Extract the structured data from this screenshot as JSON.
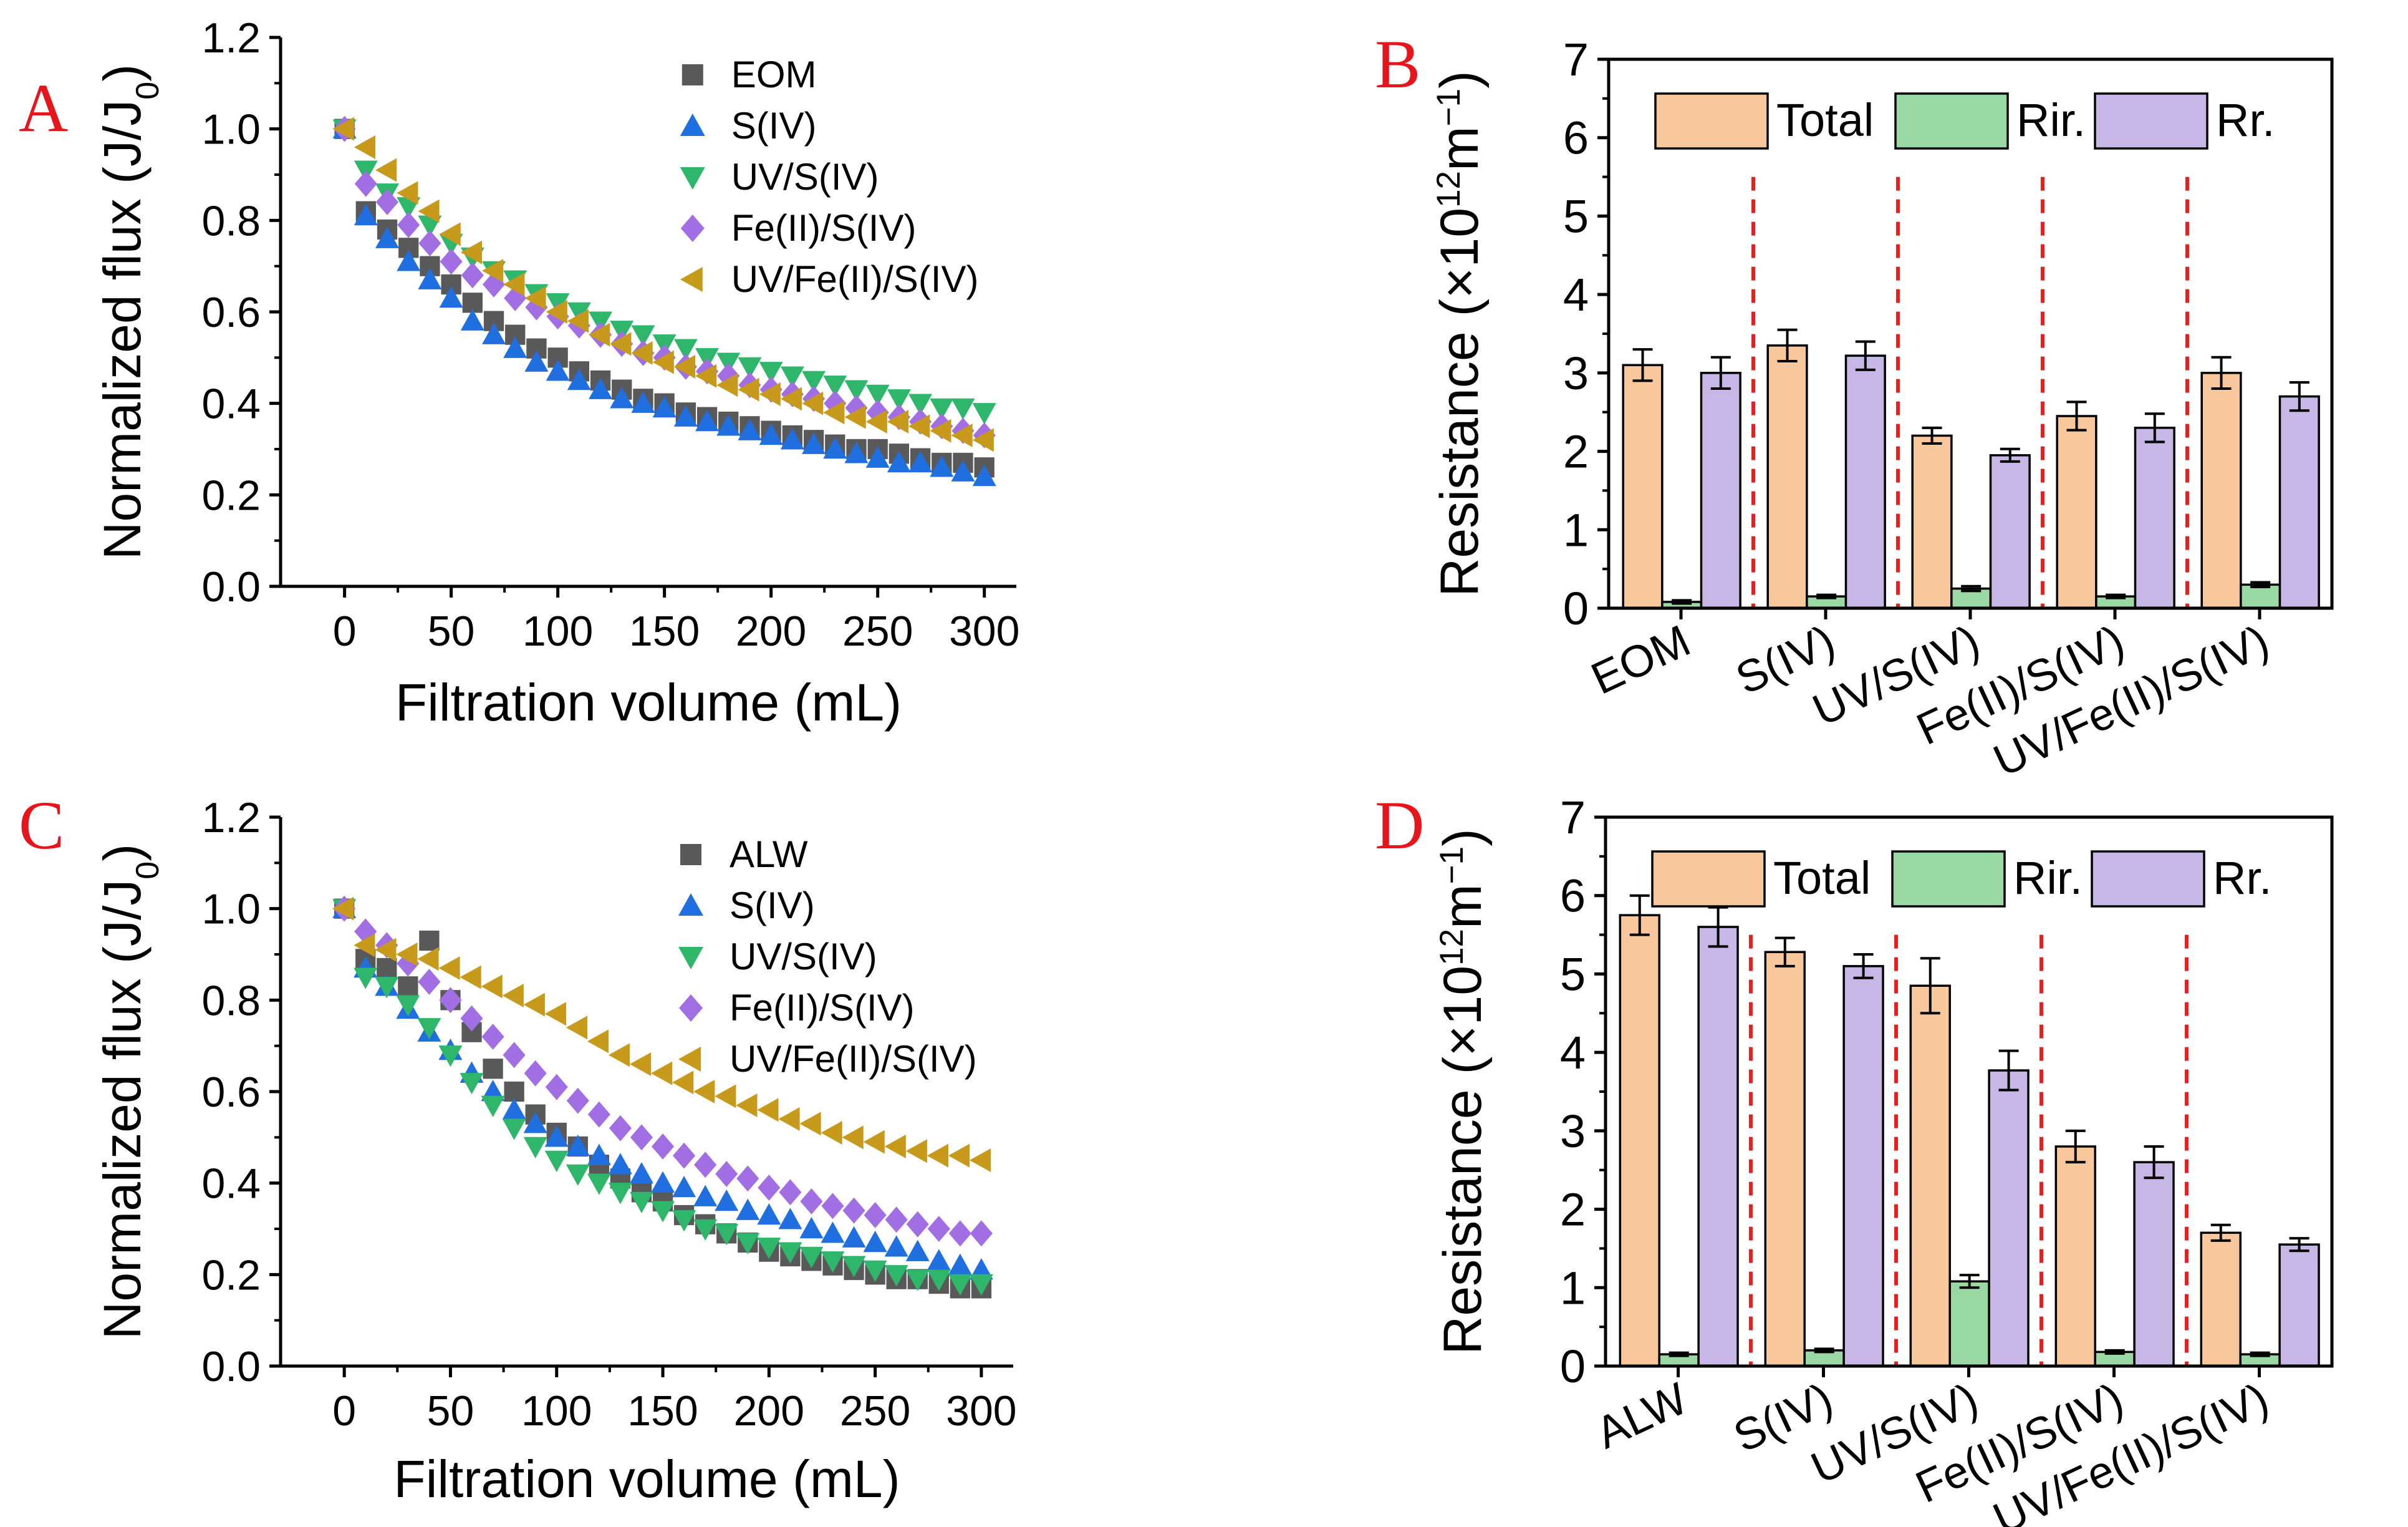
{
  "chart_data": [
    {
      "panel": "A",
      "type": "scatter",
      "xlabel": "Filtration volume (mL)",
      "ylabel": "Normalized flux (J/J",
      "ylabel_sub": "0",
      "ylabel_end": ")",
      "xlim": [
        -30,
        315
      ],
      "ylim": [
        0,
        1.2
      ],
      "xticks": [
        "0",
        "50",
        "100",
        "150",
        "200",
        "250",
        "300"
      ],
      "yticks": [
        "0.0",
        "0.2",
        "0.4",
        "0.6",
        "0.8",
        "1.0",
        "1.2"
      ],
      "legend_position": "top-right",
      "series": [
        {
          "name": "EOM",
          "marker": "square",
          "color": "#595959",
          "x": [
            0,
            10,
            20,
            30,
            40,
            50,
            60,
            70,
            80,
            90,
            100,
            110,
            120,
            130,
            140,
            150,
            160,
            170,
            180,
            190,
            200,
            210,
            220,
            230,
            240,
            250,
            260,
            270,
            280,
            290,
            300
          ],
          "values": [
            1.0,
            0.82,
            0.78,
            0.74,
            0.7,
            0.66,
            0.62,
            0.58,
            0.55,
            0.52,
            0.5,
            0.47,
            0.45,
            0.43,
            0.41,
            0.4,
            0.38,
            0.37,
            0.36,
            0.35,
            0.34,
            0.33,
            0.32,
            0.31,
            0.3,
            0.3,
            0.29,
            0.28,
            0.27,
            0.27,
            0.26
          ]
        },
        {
          "name": "S(IV)",
          "marker": "triangle-up",
          "color": "#1f6fe0",
          "x": [
            0,
            10,
            20,
            30,
            40,
            50,
            60,
            70,
            80,
            90,
            100,
            110,
            120,
            130,
            140,
            150,
            160,
            170,
            180,
            190,
            200,
            210,
            220,
            230,
            240,
            250,
            260,
            270,
            280,
            290,
            300
          ],
          "values": [
            1.0,
            0.81,
            0.76,
            0.71,
            0.67,
            0.63,
            0.58,
            0.55,
            0.52,
            0.49,
            0.47,
            0.45,
            0.43,
            0.41,
            0.4,
            0.39,
            0.37,
            0.36,
            0.35,
            0.34,
            0.33,
            0.32,
            0.31,
            0.3,
            0.29,
            0.28,
            0.27,
            0.27,
            0.26,
            0.25,
            0.24
          ]
        },
        {
          "name": "UV/S(IV)",
          "marker": "triangle-down",
          "color": "#2eb66b",
          "x": [
            0,
            10,
            20,
            30,
            40,
            50,
            60,
            70,
            80,
            90,
            100,
            110,
            120,
            130,
            140,
            150,
            160,
            170,
            180,
            190,
            200,
            210,
            220,
            230,
            240,
            250,
            260,
            270,
            280,
            290,
            300
          ],
          "values": [
            1.0,
            0.91,
            0.86,
            0.83,
            0.79,
            0.75,
            0.72,
            0.69,
            0.67,
            0.64,
            0.62,
            0.6,
            0.58,
            0.56,
            0.55,
            0.53,
            0.52,
            0.5,
            0.49,
            0.48,
            0.47,
            0.46,
            0.45,
            0.44,
            0.43,
            0.42,
            0.41,
            0.4,
            0.39,
            0.39,
            0.38
          ]
        },
        {
          "name": "Fe(II)/S(IV)",
          "marker": "diamond",
          "color": "#a26ee3",
          "x": [
            0,
            10,
            20,
            30,
            40,
            50,
            60,
            70,
            80,
            90,
            100,
            110,
            120,
            130,
            140,
            150,
            160,
            170,
            180,
            190,
            200,
            210,
            220,
            230,
            240,
            250,
            260,
            270,
            280,
            290,
            300
          ],
          "values": [
            1.0,
            0.88,
            0.84,
            0.79,
            0.75,
            0.71,
            0.68,
            0.66,
            0.63,
            0.61,
            0.59,
            0.57,
            0.55,
            0.53,
            0.51,
            0.5,
            0.48,
            0.47,
            0.46,
            0.44,
            0.43,
            0.42,
            0.41,
            0.4,
            0.39,
            0.38,
            0.37,
            0.36,
            0.35,
            0.34,
            0.33
          ]
        },
        {
          "name": "UV/Fe(II)/S(IV)",
          "marker": "triangle-left",
          "color": "#c89a1c",
          "x": [
            0,
            10,
            20,
            30,
            40,
            50,
            60,
            70,
            80,
            90,
            100,
            110,
            120,
            130,
            140,
            150,
            160,
            170,
            180,
            190,
            200,
            210,
            220,
            230,
            240,
            250,
            260,
            270,
            280,
            290,
            300
          ],
          "values": [
            1.0,
            0.96,
            0.91,
            0.86,
            0.82,
            0.77,
            0.73,
            0.69,
            0.66,
            0.63,
            0.6,
            0.58,
            0.55,
            0.53,
            0.51,
            0.49,
            0.48,
            0.46,
            0.44,
            0.43,
            0.42,
            0.41,
            0.4,
            0.38,
            0.37,
            0.36,
            0.36,
            0.35,
            0.34,
            0.33,
            0.32
          ]
        }
      ]
    },
    {
      "panel": "B",
      "type": "bar",
      "ylabel": "Resistance (×10",
      "ylabel_sup": "12",
      "ylabel_end": "m",
      "ylabel_sup2": "−1",
      "ylabel_close": ")",
      "ylim": [
        0,
        7
      ],
      "yticks": [
        "0",
        "1",
        "2",
        "3",
        "4",
        "5",
        "6",
        "7"
      ],
      "categories": [
        "EOM",
        "S(IV)",
        "UV/S(IV)",
        "Fe(II)/S(IV)",
        "UV/Fe(II)/S(IV)"
      ],
      "legend_position": "top",
      "series": [
        {
          "name": "Total",
          "color": "#f9c79c",
          "values": [
            3.1,
            3.35,
            2.2,
            2.45,
            3.0
          ],
          "errors": [
            0.2,
            0.2,
            0.1,
            0.18,
            0.2
          ]
        },
        {
          "name": "Rir.",
          "color": "#9ad8a4",
          "values": [
            0.08,
            0.15,
            0.25,
            0.15,
            0.3
          ],
          "errors": [
            0.02,
            0.02,
            0.03,
            0.02,
            0.03
          ]
        },
        {
          "name": "Rr.",
          "color": "#c7b7e6",
          "values": [
            3.0,
            3.22,
            1.95,
            2.3,
            2.7
          ],
          "errors": [
            0.2,
            0.18,
            0.08,
            0.18,
            0.18
          ]
        }
      ]
    },
    {
      "panel": "C",
      "type": "scatter",
      "xlabel": "Filtration volume (mL)",
      "ylabel": "Normalized flux (J/J",
      "ylabel_sub": "0",
      "ylabel_end": ")",
      "xlim": [
        -30,
        315
      ],
      "ylim": [
        0,
        1.2
      ],
      "xticks": [
        "0",
        "50",
        "100",
        "150",
        "200",
        "250",
        "300"
      ],
      "yticks": [
        "0.0",
        "0.2",
        "0.4",
        "0.6",
        "0.8",
        "1.0",
        "1.2"
      ],
      "legend_position": "top-right",
      "series": [
        {
          "name": "ALW",
          "marker": "square",
          "color": "#595959",
          "x": [
            0,
            10,
            20,
            30,
            40,
            50,
            60,
            70,
            80,
            90,
            100,
            110,
            120,
            130,
            140,
            150,
            160,
            170,
            180,
            190,
            200,
            210,
            220,
            230,
            240,
            250,
            260,
            270,
            280,
            290,
            300
          ],
          "values": [
            1.0,
            0.89,
            0.87,
            0.83,
            0.93,
            0.8,
            0.73,
            0.65,
            0.6,
            0.55,
            0.51,
            0.48,
            0.44,
            0.41,
            0.38,
            0.36,
            0.33,
            0.31,
            0.29,
            0.27,
            0.25,
            0.24,
            0.23,
            0.22,
            0.21,
            0.2,
            0.19,
            0.19,
            0.18,
            0.17,
            0.17
          ]
        },
        {
          "name": "S(IV)",
          "marker": "triangle-up",
          "color": "#1f6fe0",
          "x": [
            0,
            10,
            20,
            30,
            40,
            50,
            60,
            70,
            80,
            90,
            100,
            110,
            120,
            130,
            140,
            150,
            160,
            170,
            180,
            190,
            200,
            210,
            220,
            230,
            240,
            250,
            260,
            270,
            280,
            290,
            300
          ],
          "values": [
            1.0,
            0.87,
            0.83,
            0.78,
            0.73,
            0.69,
            0.64,
            0.6,
            0.56,
            0.53,
            0.5,
            0.48,
            0.46,
            0.44,
            0.42,
            0.4,
            0.39,
            0.37,
            0.36,
            0.34,
            0.33,
            0.32,
            0.3,
            0.29,
            0.28,
            0.27,
            0.26,
            0.25,
            0.23,
            0.22,
            0.21
          ]
        },
        {
          "name": "UV/S(IV)",
          "marker": "triangle-down",
          "color": "#2eb66b",
          "x": [
            0,
            10,
            20,
            30,
            40,
            50,
            60,
            70,
            80,
            90,
            100,
            110,
            120,
            130,
            140,
            150,
            160,
            170,
            180,
            190,
            200,
            210,
            220,
            230,
            240,
            250,
            260,
            270,
            280,
            290,
            300
          ],
          "values": [
            1.0,
            0.85,
            0.83,
            0.79,
            0.74,
            0.68,
            0.62,
            0.57,
            0.52,
            0.48,
            0.45,
            0.42,
            0.4,
            0.38,
            0.36,
            0.34,
            0.32,
            0.3,
            0.29,
            0.27,
            0.26,
            0.25,
            0.24,
            0.23,
            0.22,
            0.21,
            0.2,
            0.19,
            0.19,
            0.18,
            0.18
          ]
        },
        {
          "name": "Fe(II)/S(IV)",
          "marker": "diamond",
          "color": "#a26ee3",
          "x": [
            0,
            10,
            20,
            30,
            40,
            50,
            60,
            70,
            80,
            90,
            100,
            110,
            120,
            130,
            140,
            150,
            160,
            170,
            180,
            190,
            200,
            210,
            220,
            230,
            240,
            250,
            260,
            270,
            280,
            290,
            300
          ],
          "values": [
            1.0,
            0.95,
            0.92,
            0.88,
            0.84,
            0.8,
            0.76,
            0.72,
            0.68,
            0.64,
            0.61,
            0.58,
            0.55,
            0.52,
            0.5,
            0.48,
            0.46,
            0.44,
            0.42,
            0.41,
            0.39,
            0.38,
            0.36,
            0.35,
            0.34,
            0.33,
            0.32,
            0.31,
            0.3,
            0.29,
            0.29
          ]
        },
        {
          "name": "UV/Fe(II)/S(IV)",
          "marker": "triangle-left",
          "color": "#c89a1c",
          "x": [
            0,
            10,
            20,
            30,
            40,
            50,
            60,
            70,
            80,
            90,
            100,
            110,
            120,
            130,
            140,
            150,
            160,
            170,
            180,
            190,
            200,
            210,
            220,
            230,
            240,
            250,
            260,
            270,
            280,
            290,
            300
          ],
          "values": [
            1.0,
            0.92,
            0.91,
            0.9,
            0.89,
            0.87,
            0.85,
            0.83,
            0.81,
            0.79,
            0.77,
            0.74,
            0.71,
            0.68,
            0.66,
            0.64,
            0.62,
            0.6,
            0.59,
            0.57,
            0.56,
            0.54,
            0.53,
            0.51,
            0.5,
            0.49,
            0.48,
            0.47,
            0.46,
            0.46,
            0.45
          ]
        }
      ]
    },
    {
      "panel": "D",
      "type": "bar",
      "ylabel": "Resistance (×10",
      "ylabel_sup": "12",
      "ylabel_end": "m",
      "ylabel_sup2": "−1",
      "ylabel_close": ")",
      "ylim": [
        0,
        7
      ],
      "yticks": [
        "0",
        "1",
        "2",
        "3",
        "4",
        "5",
        "6",
        "7"
      ],
      "categories": [
        "ALW",
        "S(IV)",
        "UV/S(IV)",
        "Fe(II)/S(IV)",
        "UV/Fe(II)/S(IV)"
      ],
      "legend_position": "top",
      "series": [
        {
          "name": "Total",
          "color": "#f9c79c",
          "values": [
            5.75,
            5.28,
            4.85,
            2.8,
            1.7
          ],
          "errors": [
            0.25,
            0.18,
            0.35,
            0.2,
            0.1
          ]
        },
        {
          "name": "Rir.",
          "color": "#9ad8a4",
          "values": [
            0.15,
            0.2,
            1.08,
            0.18,
            0.15
          ],
          "errors": [
            0.02,
            0.02,
            0.08,
            0.02,
            0.02
          ]
        },
        {
          "name": "Rr.",
          "color": "#c7b7e6",
          "values": [
            5.6,
            5.1,
            3.77,
            2.6,
            1.55
          ],
          "errors": [
            0.25,
            0.15,
            0.25,
            0.2,
            0.08
          ]
        }
      ]
    }
  ]
}
